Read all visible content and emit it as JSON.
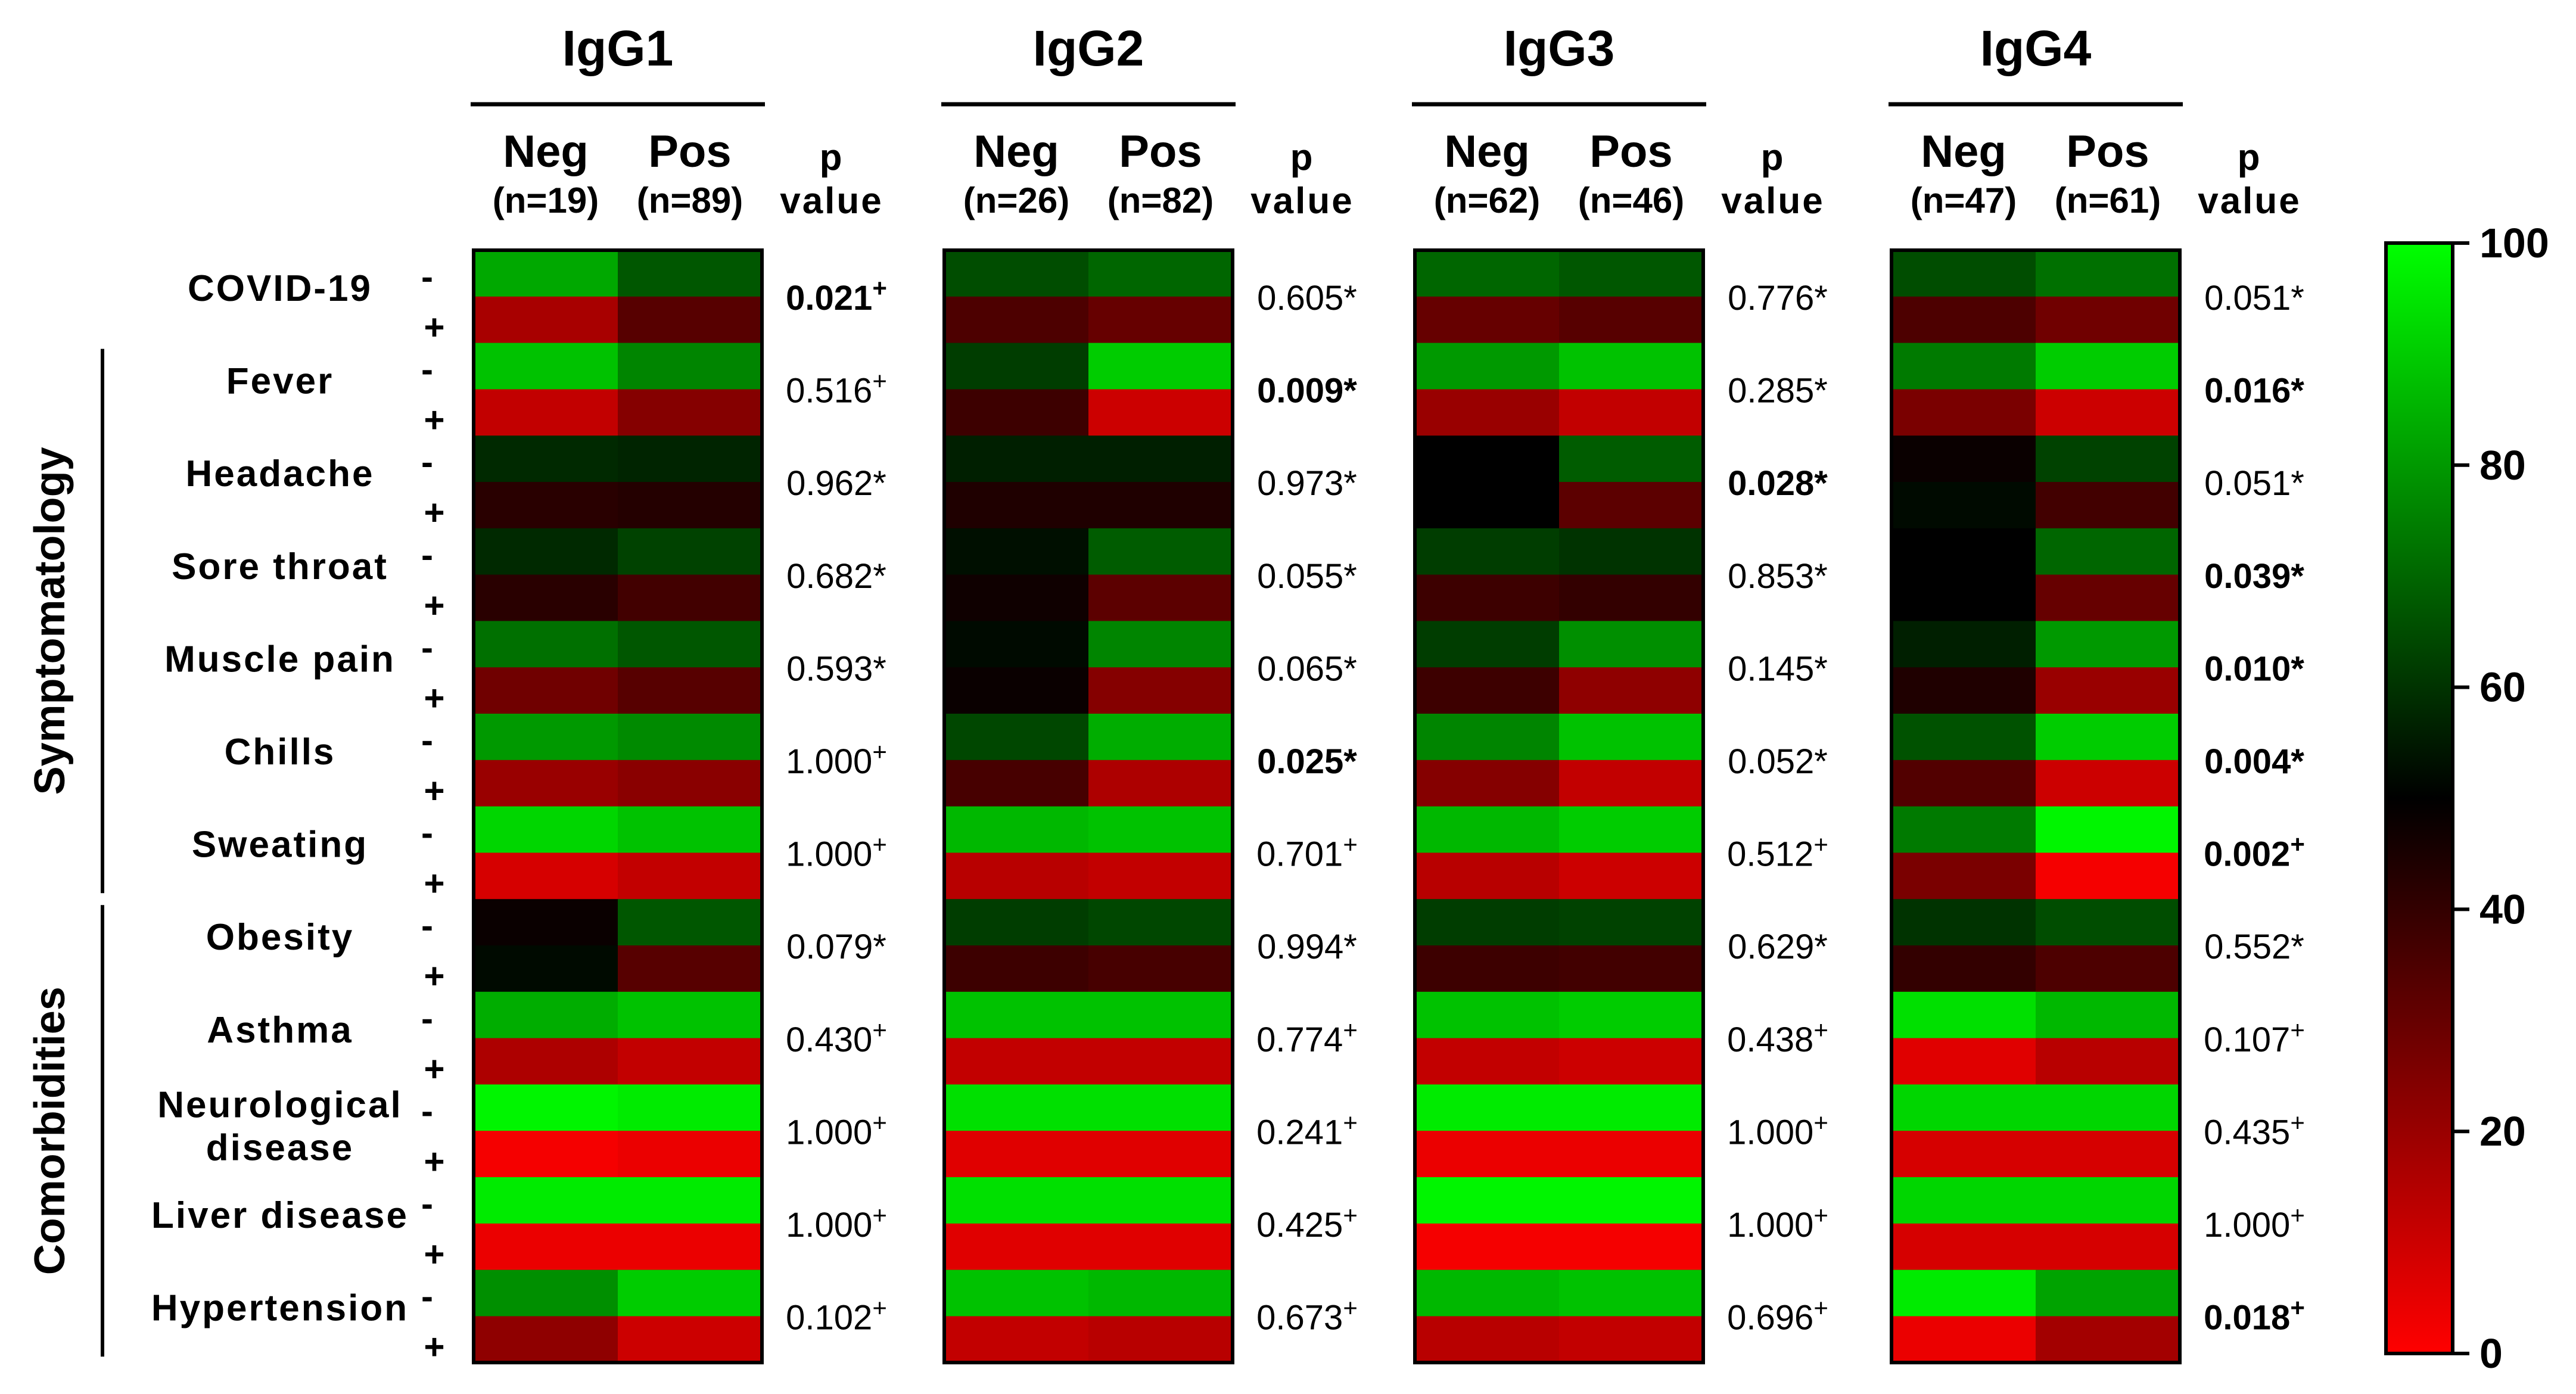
{
  "chart_data": {
    "type": "heatmap",
    "colorscale": {
      "min": 0,
      "mid": 50,
      "max": 100,
      "low_color": "#ff0000",
      "mid_color": "#000000",
      "high_color": "#00ff00"
    },
    "colorbar_ticks": [
      "100",
      "80",
      "60",
      "40",
      "20",
      "0"
    ],
    "panels": [
      {
        "title": "IgG1",
        "cols": [
          {
            "label": "Neg",
            "n": "(n=19)"
          },
          {
            "label": "Pos",
            "n": "(n=89)"
          }
        ],
        "p_header": [
          "p",
          "value"
        ]
      },
      {
        "title": "IgG2",
        "cols": [
          {
            "label": "Neg",
            "n": "(n=26)"
          },
          {
            "label": "Pos",
            "n": "(n=82)"
          }
        ],
        "p_header": [
          "p",
          "value"
        ]
      },
      {
        "title": "IgG3",
        "cols": [
          {
            "label": "Neg",
            "n": "(n=62)"
          },
          {
            "label": "Pos",
            "n": "(n=46)"
          }
        ],
        "p_header": [
          "p",
          "value"
        ]
      },
      {
        "title": "IgG4",
        "cols": [
          {
            "label": "Neg",
            "n": "(n=47)"
          },
          {
            "label": "Pos",
            "n": "(n=61)"
          }
        ],
        "p_header": [
          "p",
          "value"
        ]
      }
    ],
    "groups": [
      {
        "label": "Symptomatology",
        "first_row": 1,
        "last_row": 6
      },
      {
        "label": "Comorbidities",
        "first_row": 7,
        "last_row": 11
      }
    ],
    "sign_labels": {
      "absent": "-",
      "present": "+"
    },
    "rows": [
      {
        "label": [
          "COVID-19"
        ],
        "values": [
          [
            [
              83,
              67
            ],
            [
              17,
              33
            ]
          ],
          [
            [
              65,
              70
            ],
            [
              35,
              30
            ]
          ],
          [
            [
              70,
              67
            ],
            [
              30,
              33
            ]
          ],
          [
            [
              65,
              72
            ],
            [
              35,
              28
            ]
          ]
        ],
        "p": [
          {
            "v": "0.021",
            "m": "+",
            "bold": true
          },
          {
            "v": "0.605",
            "m": "*",
            "bold": false
          },
          {
            "v": "0.776",
            "m": "*",
            "bold": false
          },
          {
            "v": "0.051",
            "m": "*",
            "bold": false
          }
        ]
      },
      {
        "label": [
          "Fever"
        ],
        "values": [
          [
            [
              88,
              76
            ],
            [
              12,
              24
            ]
          ],
          [
            [
              62,
              90
            ],
            [
              38,
              10
            ]
          ],
          [
            [
              80,
              88
            ],
            [
              20,
              12
            ]
          ],
          [
            [
              74,
              90
            ],
            [
              26,
              10
            ]
          ]
        ],
        "p": [
          {
            "v": "0.516",
            "m": "+",
            "bold": false
          },
          {
            "v": "0.009",
            "m": "*",
            "bold": true
          },
          {
            "v": "0.285",
            "m": "*",
            "bold": false
          },
          {
            "v": "0.016",
            "m": "*",
            "bold": true
          }
        ]
      },
      {
        "label": [
          "Headache"
        ],
        "values": [
          [
            [
              58,
              57
            ],
            [
              42,
              43
            ]
          ],
          [
            [
              56,
              56
            ],
            [
              44,
              44
            ]
          ],
          [
            [
              50,
              68
            ],
            [
              50,
              32
            ]
          ],
          [
            [
              48,
              63
            ],
            [
              52,
              37
            ]
          ]
        ],
        "p": [
          {
            "v": "0.962",
            "m": "*",
            "bold": false
          },
          {
            "v": "0.973",
            "m": "*",
            "bold": false
          },
          {
            "v": "0.028",
            "m": "*",
            "bold": true
          },
          {
            "v": "0.051",
            "m": "*",
            "bold": false
          }
        ]
      },
      {
        "label": [
          "Sore throat"
        ],
        "values": [
          [
            [
              58,
              63
            ],
            [
              42,
              37
            ]
          ],
          [
            [
              53,
              68
            ],
            [
              47,
              32
            ]
          ],
          [
            [
              62,
              60
            ],
            [
              38,
              40
            ]
          ],
          [
            [
              50,
              70
            ],
            [
              50,
              30
            ]
          ]
        ],
        "p": [
          {
            "v": "0.682",
            "m": "*",
            "bold": false
          },
          {
            "v": "0.055",
            "m": "*",
            "bold": false
          },
          {
            "v": "0.853",
            "m": "*",
            "bold": false
          },
          {
            "v": "0.039",
            "m": "*",
            "bold": true
          }
        ]
      },
      {
        "label": [
          "Muscle pain"
        ],
        "values": [
          [
            [
              72,
              67
            ],
            [
              28,
              33
            ]
          ],
          [
            [
              52,
              76
            ],
            [
              48,
              24
            ]
          ],
          [
            [
              62,
              78
            ],
            [
              38,
              22
            ]
          ],
          [
            [
              56,
              80
            ],
            [
              44,
              20
            ]
          ]
        ],
        "p": [
          {
            "v": "0.593",
            "m": "*",
            "bold": false
          },
          {
            "v": "0.065",
            "m": "*",
            "bold": false
          },
          {
            "v": "0.145",
            "m": "*",
            "bold": false
          },
          {
            "v": "0.010",
            "m": "*",
            "bold": true
          }
        ]
      },
      {
        "label": [
          "Chills"
        ],
        "values": [
          [
            [
              80,
              77
            ],
            [
              20,
              23
            ]
          ],
          [
            [
              64,
              84
            ],
            [
              36,
              16
            ]
          ],
          [
            [
              76,
              88
            ],
            [
              24,
              12
            ]
          ],
          [
            [
              66,
              90
            ],
            [
              34,
              10
            ]
          ]
        ],
        "p": [
          {
            "v": "1.000",
            "m": "+",
            "bold": false
          },
          {
            "v": "0.025",
            "m": "*",
            "bold": true
          },
          {
            "v": "0.052",
            "m": "*",
            "bold": false
          },
          {
            "v": "0.004",
            "m": "*",
            "bold": true
          }
        ]
      },
      {
        "label": [
          "Sweating"
        ],
        "values": [
          [
            [
              92,
              88
            ],
            [
              8,
              12
            ]
          ],
          [
            [
              86,
              88
            ],
            [
              14,
              12
            ]
          ],
          [
            [
              86,
              90
            ],
            [
              14,
              10
            ]
          ],
          [
            [
              74,
              98
            ],
            [
              26,
              2
            ]
          ]
        ],
        "p": [
          {
            "v": "1.000",
            "m": "+",
            "bold": false
          },
          {
            "v": "0.701",
            "m": "+",
            "bold": false
          },
          {
            "v": "0.512",
            "m": "+",
            "bold": false
          },
          {
            "v": "0.002",
            "m": "+",
            "bold": true
          }
        ]
      },
      {
        "label": [
          "Obesity"
        ],
        "values": [
          [
            [
              48,
              67
            ],
            [
              52,
              33
            ]
          ],
          [
            [
              62,
              64
            ],
            [
              38,
              36
            ]
          ],
          [
            [
              62,
              63
            ],
            [
              38,
              37
            ]
          ],
          [
            [
              60,
              65
            ],
            [
              40,
              35
            ]
          ]
        ],
        "p": [
          {
            "v": "0.079",
            "m": "*",
            "bold": false
          },
          {
            "v": "0.994",
            "m": "*",
            "bold": false
          },
          {
            "v": "0.629",
            "m": "*",
            "bold": false
          },
          {
            "v": "0.552",
            "m": "*",
            "bold": false
          }
        ]
      },
      {
        "label": [
          "Asthma"
        ],
        "values": [
          [
            [
              84,
              88
            ],
            [
              16,
              12
            ]
          ],
          [
            [
              88,
              88
            ],
            [
              12,
              12
            ]
          ],
          [
            [
              88,
              90
            ],
            [
              12,
              10
            ]
          ],
          [
            [
              94,
              86
            ],
            [
              6,
              14
            ]
          ]
        ],
        "p": [
          {
            "v": "0.430",
            "m": "+",
            "bold": false
          },
          {
            "v": "0.774",
            "m": "+",
            "bold": false
          },
          {
            "v": "0.438",
            "m": "+",
            "bold": false
          },
          {
            "v": "0.107",
            "m": "+",
            "bold": false
          }
        ]
      },
      {
        "label": [
          "Neurological",
          "disease"
        ],
        "values": [
          [
            [
              98,
              96
            ],
            [
              2,
              4
            ]
          ],
          [
            [
              94,
              94
            ],
            [
              6,
              6
            ]
          ],
          [
            [
              96,
              96
            ],
            [
              4,
              4
            ]
          ],
          [
            [
              92,
              92
            ],
            [
              8,
              8
            ]
          ]
        ],
        "p": [
          {
            "v": "1.000",
            "m": "+",
            "bold": false
          },
          {
            "v": "0.241",
            "m": "+",
            "bold": false
          },
          {
            "v": "1.000",
            "m": "+",
            "bold": false
          },
          {
            "v": "0.435",
            "m": "+",
            "bold": false
          }
        ]
      },
      {
        "label": [
          "Liver disease"
        ],
        "values": [
          [
            [
              96,
              96
            ],
            [
              4,
              4
            ]
          ],
          [
            [
              94,
              94
            ],
            [
              6,
              6
            ]
          ],
          [
            [
              98,
              98
            ],
            [
              2,
              2
            ]
          ],
          [
            [
              92,
              92
            ],
            [
              8,
              8
            ]
          ]
        ],
        "p": [
          {
            "v": "1.000",
            "m": "+",
            "bold": false
          },
          {
            "v": "0.425",
            "m": "+",
            "bold": false
          },
          {
            "v": "1.000",
            "m": "+",
            "bold": false
          },
          {
            "v": "1.000",
            "m": "+",
            "bold": false
          }
        ]
      },
      {
        "label": [
          "Hypertension"
        ],
        "values": [
          [
            [
              78,
              90
            ],
            [
              22,
              10
            ]
          ],
          [
            [
              88,
              86
            ],
            [
              12,
              14
            ]
          ],
          [
            [
              86,
              88
            ],
            [
              14,
              12
            ]
          ],
          [
            [
              96,
              82
            ],
            [
              4,
              18
            ]
          ]
        ],
        "p": [
          {
            "v": "0.102",
            "m": "+",
            "bold": false
          },
          {
            "v": "0.673",
            "m": "+",
            "bold": false
          },
          {
            "v": "0.696",
            "m": "+",
            "bold": false
          },
          {
            "v": "0.018",
            "m": "+",
            "bold": true
          }
        ]
      }
    ]
  }
}
